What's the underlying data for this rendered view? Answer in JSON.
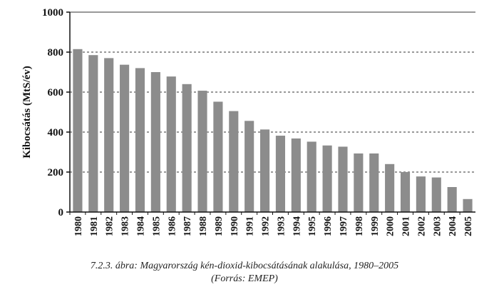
{
  "chart_data": {
    "type": "bar",
    "ylabel": "Kibocsátás (MtS/év)",
    "xlabel": "",
    "ylim": [
      0,
      1000
    ],
    "yticks": [
      0,
      200,
      400,
      600,
      800,
      1000
    ],
    "grid": "horizontal dashed",
    "bar_color": "#8c8c8c",
    "categories": [
      "1980",
      "1981",
      "1982",
      "1983",
      "1984",
      "1985",
      "1986",
      "1987",
      "1988",
      "1989",
      "1990",
      "1991",
      "1992",
      "1993",
      "1994",
      "1995",
      "1996",
      "1997",
      "1998",
      "1999",
      "2000",
      "2001",
      "2002",
      "2003",
      "2004",
      "2005"
    ],
    "values": [
      815,
      785,
      770,
      737,
      720,
      700,
      678,
      640,
      607,
      552,
      505,
      456,
      413,
      382,
      368,
      352,
      333,
      327,
      293,
      293,
      240,
      200,
      178,
      173,
      125,
      65
    ]
  },
  "caption": {
    "line1": "7.2.3. ábra: Magyarország kén-dioxid-kibocsátásának alakulása, 1980–2005",
    "line2": "(Forrás: EMEP)"
  }
}
